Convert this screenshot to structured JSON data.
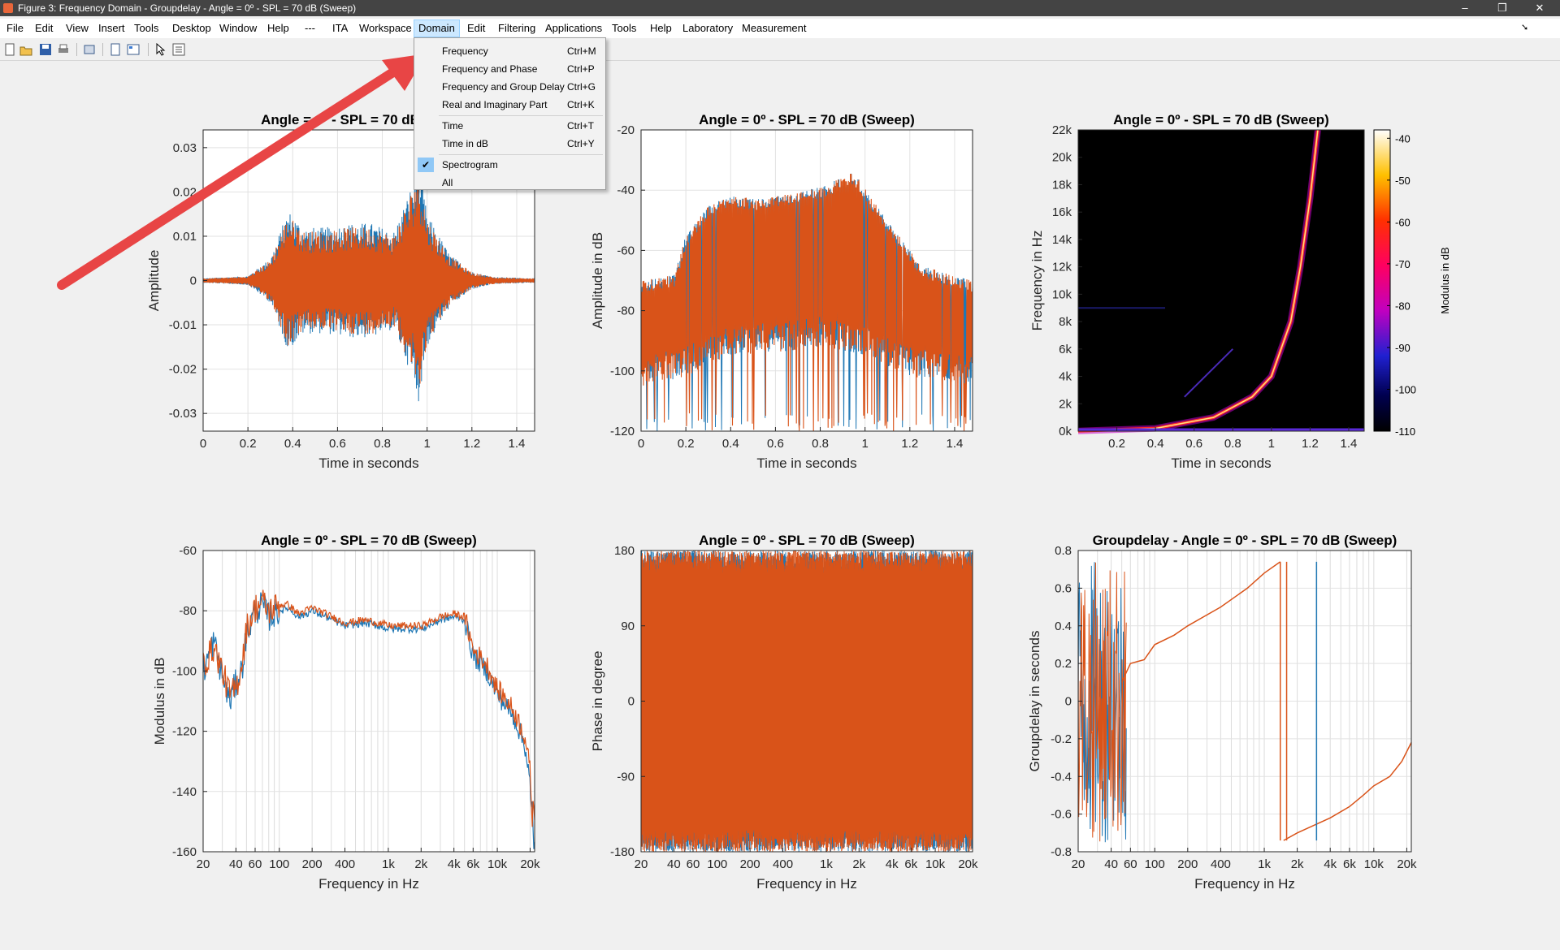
{
  "window": {
    "title": "Figure 3: Frequency Domain - Groupdelay - Angle = 0º - SPL = 70 dB (Sweep)",
    "minimize": "–",
    "restore": "❐",
    "close": "✕"
  },
  "menubar": {
    "items": [
      "File",
      "Edit",
      "View",
      "Insert",
      "Tools",
      "Desktop",
      "Window",
      "Help",
      "---",
      "ITA",
      "Workspace",
      "Domain",
      "Edit",
      "Filtering",
      "Applications",
      "Tools",
      "Help",
      "Laboratory",
      "Measurement"
    ],
    "active": "Domain"
  },
  "toolbar": {
    "icons": [
      "new-figure-icon",
      "open-file-icon",
      "save-icon",
      "print-icon",
      "print-preview-icon",
      "link-plot-icon",
      "insert-legend-icon",
      "pointer-icon",
      "property-editor-icon"
    ]
  },
  "domain_menu": {
    "items": [
      {
        "label": "Frequency",
        "shortcut": "Ctrl+M"
      },
      {
        "label": "Frequency and Phase",
        "shortcut": "Ctrl+P"
      },
      {
        "label": "Frequency and Group Delay",
        "shortcut": "Ctrl+G"
      },
      {
        "label": "Real and Imaginary Part",
        "shortcut": "Ctrl+K"
      },
      {
        "label": "Time",
        "shortcut": "Ctrl+T"
      },
      {
        "label": "Time in dB",
        "shortcut": "Ctrl+Y"
      },
      {
        "label": "Spectrogram",
        "shortcut": "",
        "checked": true
      },
      {
        "label": "All",
        "shortcut": ""
      }
    ]
  },
  "colors": {
    "series1": "#1f77b4",
    "series2": "#d95319",
    "arrow": "#e84545"
  },
  "chart_data": [
    {
      "type": "line",
      "title": "Angle = 0º - SPL = 70 dB (Sweep)",
      "xlabel": "Time in seconds",
      "ylabel": "Amplitude",
      "xlim": [
        0,
        1.48
      ],
      "ylim": [
        -0.034,
        0.034
      ],
      "xticks": [
        "0",
        "0.2",
        "0.4",
        "0.6",
        "0.8",
        "1",
        "1.2",
        "1.4"
      ],
      "yticks": [
        "0.03",
        "0.02",
        "0.01",
        "0",
        "-0.01",
        "-0.02",
        "-0.03"
      ],
      "series": [
        {
          "envelope": [
            [
              0,
              0.0005
            ],
            [
              0.2,
              0.001
            ],
            [
              0.3,
              0.005
            ],
            [
              0.38,
              0.016
            ],
            [
              0.45,
              0.012
            ],
            [
              0.55,
              0.012
            ],
            [
              0.65,
              0.013
            ],
            [
              0.75,
              0.013
            ],
            [
              0.85,
              0.011
            ],
            [
              0.92,
              0.02
            ],
            [
              0.96,
              0.028
            ],
            [
              1.0,
              0.015
            ],
            [
              1.1,
              0.006
            ],
            [
              1.2,
              0.002
            ],
            [
              1.3,
              0.0008
            ],
            [
              1.48,
              0.0005
            ]
          ]
        },
        {
          "envelope": [
            [
              0,
              0.0005
            ],
            [
              0.2,
              0.001
            ],
            [
              0.3,
              0.005
            ],
            [
              0.38,
              0.016
            ],
            [
              0.45,
              0.012
            ],
            [
              0.55,
              0.012
            ],
            [
              0.65,
              0.013
            ],
            [
              0.75,
              0.013
            ],
            [
              0.85,
              0.011
            ],
            [
              0.92,
              0.02
            ],
            [
              0.96,
              0.028
            ],
            [
              1.0,
              0.015
            ],
            [
              1.1,
              0.006
            ],
            [
              1.2,
              0.002
            ],
            [
              1.3,
              0.0008
            ],
            [
              1.48,
              0.0005
            ]
          ]
        }
      ]
    },
    {
      "type": "line",
      "title": "Angle = 0º - SPL = 70 dB (Sweep)",
      "xlabel": "Time in seconds",
      "ylabel": "Amplitude in dB",
      "xlim": [
        0,
        1.48
      ],
      "ylim": [
        -120,
        -20
      ],
      "xticks": [
        "0",
        "0.2",
        "0.4",
        "0.6",
        "0.8",
        "1",
        "1.2",
        "1.4"
      ],
      "yticks": [
        "-20",
        "-40",
        "-60",
        "-80",
        "-100",
        "-120"
      ],
      "series": [
        {
          "upper": [
            [
              0,
              -70
            ],
            [
              0.15,
              -68
            ],
            [
              0.2,
              -55
            ],
            [
              0.3,
              -45
            ],
            [
              0.4,
              -42
            ],
            [
              0.55,
              -43
            ],
            [
              0.7,
              -40
            ],
            [
              0.8,
              -39
            ],
            [
              0.95,
              -34
            ],
            [
              1.05,
              -45
            ],
            [
              1.15,
              -55
            ],
            [
              1.25,
              -65
            ],
            [
              1.48,
              -70
            ]
          ],
          "lower": [
            [
              0,
              -95
            ],
            [
              0.2,
              -92
            ],
            [
              0.4,
              -85
            ],
            [
              0.6,
              -84
            ],
            [
              0.8,
              -82
            ],
            [
              1.0,
              -85
            ],
            [
              1.2,
              -92
            ],
            [
              1.48,
              -95
            ]
          ]
        }
      ]
    },
    {
      "type": "heatmap",
      "title": "Angle = 0º - SPL = 70 dB (Sweep)",
      "xlabel": "Time in seconds",
      "ylabel": "Frequency in Hz",
      "xlim": [
        0,
        1.48
      ],
      "ylim": [
        0,
        22000
      ],
      "xticks": [
        "0.2",
        "0.4",
        "0.6",
        "0.8",
        "1",
        "1.2",
        "1.4"
      ],
      "yticks": [
        "22k",
        "20k",
        "18k",
        "16k",
        "14k",
        "12k",
        "10k",
        "8k",
        "6k",
        "4k",
        "2k",
        "0k"
      ],
      "colorbar": {
        "label": "Modulus in dB",
        "ticks": [
          "-40",
          "-50",
          "-60",
          "-70",
          "-80",
          "-90",
          "-100",
          "-110"
        ],
        "range": [
          -110,
          -38
        ]
      },
      "sweep": [
        [
          0.0,
          20
        ],
        [
          0.4,
          200
        ],
        [
          0.7,
          1000
        ],
        [
          0.9,
          2500
        ],
        [
          1.0,
          4000
        ],
        [
          1.1,
          8000
        ],
        [
          1.15,
          12000
        ],
        [
          1.2,
          17000
        ],
        [
          1.24,
          22000
        ]
      ]
    },
    {
      "type": "line",
      "title": "Angle = 0º - SPL = 70 dB (Sweep)",
      "xlabel": "Frequency in Hz",
      "ylabel": "Modulus in dB",
      "xscale": "log",
      "xlim": [
        20,
        22000
      ],
      "ylim": [
        -160,
        -60
      ],
      "xticks": [
        "20",
        "40",
        "60",
        "100",
        "200",
        "400",
        "1k",
        "2k",
        "4k",
        "6k",
        "10k",
        "20k"
      ],
      "yticks": [
        "-60",
        "-80",
        "-100",
        "-120",
        "-140",
        "-160"
      ],
      "series": [
        {
          "x": [
            20,
            25,
            30,
            35,
            40,
            45,
            50,
            60,
            70,
            80,
            100,
            120,
            150,
            200,
            300,
            400,
            600,
            1000,
            2000,
            3000,
            4000,
            5000,
            6000,
            8000,
            10000,
            14000,
            18000,
            22000
          ],
          "y": [
            -100,
            -90,
            -102,
            -110,
            -104,
            -100,
            -88,
            -80,
            -78,
            -82,
            -80,
            -79,
            -82,
            -80,
            -83,
            -85,
            -84,
            -86,
            -86,
            -83,
            -82,
            -83,
            -95,
            -100,
            -108,
            -115,
            -125,
            -150
          ]
        },
        {
          "x": [
            20,
            25,
            30,
            35,
            40,
            45,
            50,
            60,
            70,
            80,
            100,
            120,
            150,
            200,
            300,
            400,
            600,
            1000,
            2000,
            3000,
            4000,
            5000,
            6000,
            8000,
            10000,
            14000,
            18000,
            22000
          ],
          "y": [
            -98,
            -92,
            -100,
            -108,
            -106,
            -98,
            -86,
            -79,
            -77,
            -80,
            -78,
            -78,
            -81,
            -79,
            -82,
            -84,
            -83,
            -85,
            -85,
            -82,
            -81,
            -82,
            -93,
            -98,
            -106,
            -113,
            -122,
            -145
          ]
        }
      ]
    },
    {
      "type": "line",
      "title": "Angle = 0º - SPL = 70 dB (Sweep)",
      "xlabel": "Frequency in Hz",
      "ylabel": "Phase in degree",
      "xscale": "log",
      "xlim": [
        20,
        22000
      ],
      "ylim": [
        -180,
        180
      ],
      "xticks": [
        "20",
        "40",
        "60",
        "100",
        "200",
        "400",
        "1k",
        "2k",
        "4k",
        "6k",
        "10k",
        "20k"
      ],
      "yticks": [
        "180",
        "90",
        "0",
        "-90",
        "-180"
      ]
    },
    {
      "type": "line",
      "title": "Groupdelay - Angle = 0º - SPL = 70 dB (Sweep)",
      "xlabel": "Frequency in Hz",
      "ylabel": "Groupdelay in seconds",
      "xscale": "log",
      "xlim": [
        20,
        22000
      ],
      "ylim": [
        -0.8,
        0.8
      ],
      "xticks": [
        "20",
        "40",
        "60",
        "100",
        "200",
        "400",
        "1k",
        "2k",
        "4k",
        "6k",
        "10k",
        "20k"
      ],
      "yticks": [
        "0.8",
        "0.6",
        "0.4",
        "0.2",
        "0",
        "-0.2",
        "-0.4",
        "-0.6",
        "-0.8"
      ],
      "series": [
        {
          "x": [
            50,
            60,
            80,
            100,
            150,
            200,
            400,
            700,
            1000,
            1400
          ],
          "y": [
            0.1,
            0.2,
            0.22,
            0.3,
            0.35,
            0.4,
            0.5,
            0.6,
            0.68,
            0.74
          ]
        },
        {
          "x": [
            1500,
            2000,
            4000,
            6000,
            8000,
            10000,
            14000,
            18000,
            22000
          ],
          "y": [
            -0.74,
            -0.7,
            -0.62,
            -0.56,
            -0.5,
            -0.45,
            -0.4,
            -0.32,
            -0.22
          ]
        }
      ]
    }
  ]
}
